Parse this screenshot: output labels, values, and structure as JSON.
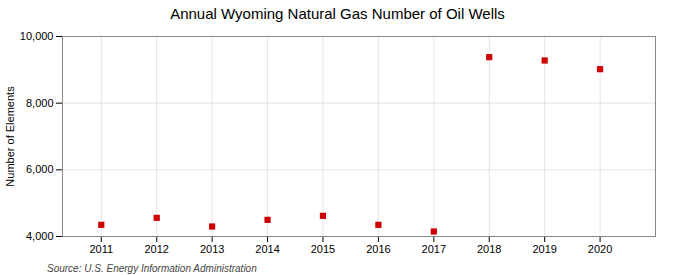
{
  "chart_data": {
    "type": "scatter",
    "title": "Annual Wyoming Natural Gas Number of Oil Wells",
    "ylabel": "Number of Elements",
    "source": "Source: U.S. Energy Information Administration",
    "x": [
      2011,
      2012,
      2013,
      2014,
      2015,
      2016,
      2017,
      2018,
      2019,
      2020
    ],
    "values": [
      4350,
      4560,
      4300,
      4500,
      4620,
      4350,
      4150,
      9380,
      9280,
      9020
    ],
    "xlim": [
      2010.3,
      2021.0
    ],
    "xticks": [
      2011,
      2012,
      2013,
      2014,
      2015,
      2016,
      2017,
      2018,
      2019,
      2020
    ],
    "ylim": [
      4000,
      10000
    ],
    "yticks": [
      {
        "value": 4000,
        "label": "4,000"
      },
      {
        "value": 6000,
        "label": "6,000"
      },
      {
        "value": 8000,
        "label": "8,000"
      },
      {
        "value": 10000,
        "label": "10,000"
      }
    ],
    "color": "#cc0000",
    "marker": "square",
    "grid": true
  }
}
